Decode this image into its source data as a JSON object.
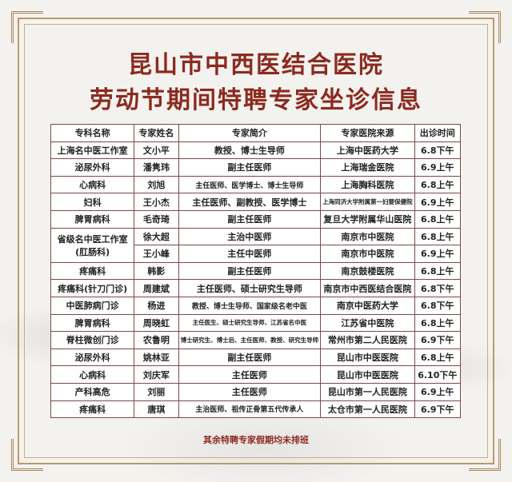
{
  "title_line1": "昆山市中西医结合医院",
  "title_line2": "劳动节期间特聘专家坐诊信息",
  "table": {
    "headers": [
      "专科名称",
      "专家姓名",
      "专家简介",
      "专家医院来源",
      "出诊时间"
    ],
    "rows": [
      {
        "dept": "上海名中医工作室",
        "name": "文小平",
        "intro": "教授、博士生导师",
        "hospital": "上海中医药大学",
        "time": "6.8下午"
      },
      {
        "dept": "泌尿外科",
        "name": "潘隽玮",
        "intro": "副主任医师",
        "hospital": "上海瑞金医院",
        "time": "6.9上午"
      },
      {
        "dept": "心病科",
        "name": "刘旭",
        "intro": "主任医师、医学博士、博士生导师",
        "hospital": "上海胸科医院",
        "time": "6.8上午"
      },
      {
        "dept": "妇科",
        "name": "王小杰",
        "intro": "主任医师、副教授、医学博士",
        "hospital": "上海同济大学附属第一妇婴保健院",
        "time": "6.9上午"
      },
      {
        "dept": "脾胃病科",
        "name": "毛奇琦",
        "intro": "副主任医师",
        "hospital": "复旦大学附属华山医院",
        "time": "6.8上午"
      },
      {
        "dept": "省级名中医工作室\n(肛肠科)",
        "name": "徐大超",
        "intro": "主治中医师",
        "hospital": "南京市中医院",
        "time": "6.8上午"
      },
      {
        "dept": "",
        "name": "王小峰",
        "intro": "主任中医师",
        "hospital": "南京市中医院",
        "time": "6.9上午"
      },
      {
        "dept": "疼痛科",
        "name": "韩影",
        "intro": "副主任医师",
        "hospital": "南京鼓楼医院",
        "time": "6.8上午"
      },
      {
        "dept": "疼痛科(针刀门诊)",
        "name": "周建斌",
        "intro": "主任医师、硕士研究生导师",
        "hospital": "南京市中西医结合医院",
        "time": "6.8下午"
      },
      {
        "dept": "中医肺病门诊",
        "name": "杨进",
        "intro": "教授、博士生导师、国家级名老中医",
        "hospital": "南京中医药大学",
        "time": "6.8下午"
      },
      {
        "dept": "脾胃病科",
        "name": "周晓虹",
        "intro": "主任医生、硕士研究生导师、江苏省名中医",
        "hospital": "江苏省中医院",
        "time": "6.8上午"
      },
      {
        "dept": "脊柱微创门诊",
        "name": "农鲁明",
        "intro": "博士研究生、博士后、主任医师、教授、研究生导师",
        "hospital": "常州市第二人民医院",
        "time": "6.9下午"
      },
      {
        "dept": "泌尿外科",
        "name": "姚林亚",
        "intro": "副主任医师",
        "hospital": "昆山市中医医院",
        "time": "6.8上午"
      },
      {
        "dept": "心病科",
        "name": "刘庆军",
        "intro": "主任医师",
        "hospital": "昆山市中医医院",
        "time": "6.10下午"
      },
      {
        "dept": "产科高危",
        "name": "刘丽",
        "intro": "主任医师",
        "hospital": "昆山市第一人民医院",
        "time": "6.9上午"
      },
      {
        "dept": "疼痛科",
        "name": "唐琪",
        "intro": "主治医师、祖传正骨第五代传承人",
        "hospital": "太仓市第一人民医院",
        "time": "6.9下午"
      }
    ]
  },
  "footer": "其余特聘专家假期均未排班",
  "colors": {
    "title": "#8c2a1f",
    "border": "#7a4a4a",
    "frame": "#b99a6a"
  }
}
